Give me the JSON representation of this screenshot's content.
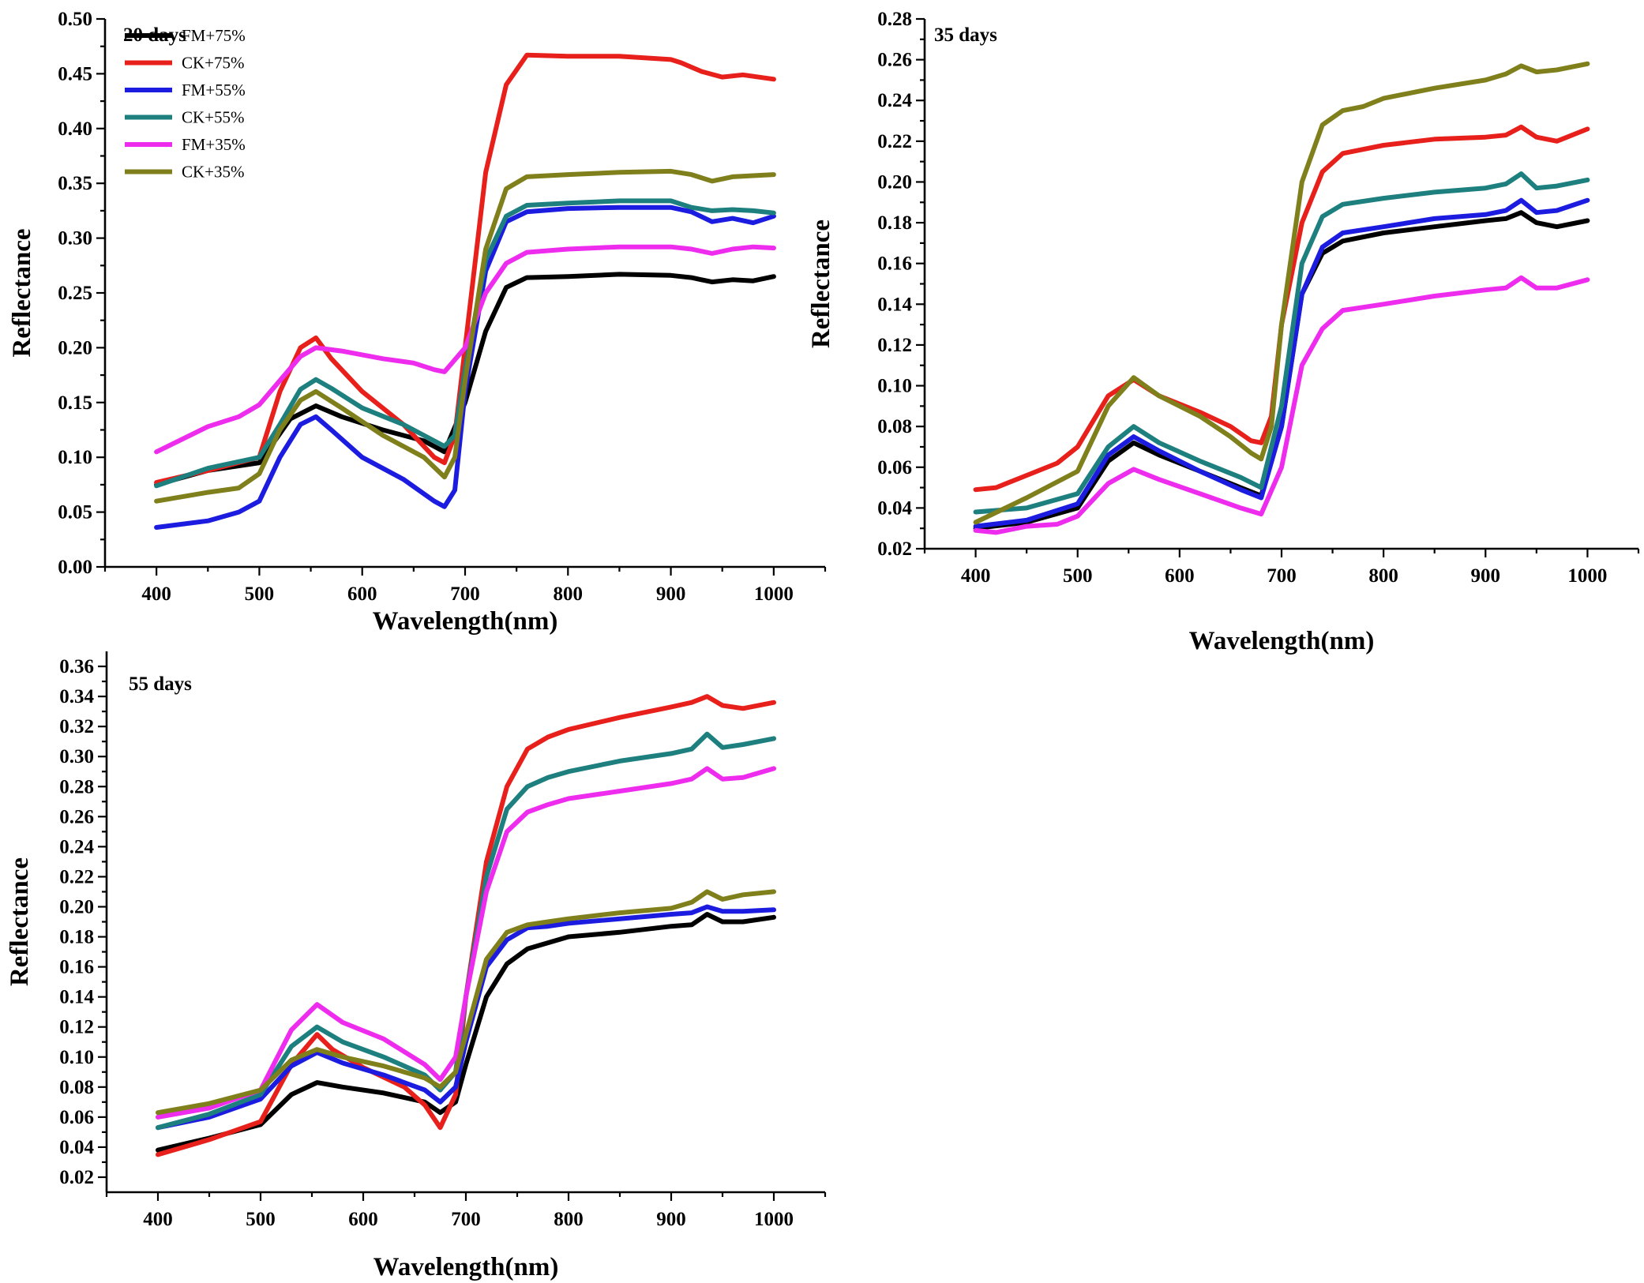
{
  "colors": {
    "FM+75%": "#000000",
    "CK+75%": "#e8201c",
    "FM+55%": "#1c1ce0",
    "CK+55%": "#1e7f7f",
    "FM+35%": "#ee2cee",
    "CK+35%": "#7f7f1c"
  },
  "chart_data": [
    {
      "type": "line",
      "title": "20 days",
      "xlabel": "Wavelength(nm)",
      "ylabel": "Reflectance",
      "xlim": [
        350,
        1050
      ],
      "ylim": [
        0.0,
        0.5
      ],
      "xticks": [
        400,
        500,
        600,
        700,
        800,
        900,
        1000
      ],
      "yticks": [
        "0.00",
        "0.05",
        "0.10",
        "0.15",
        "0.20",
        "0.25",
        "0.30",
        "0.35",
        "0.40",
        "0.45",
        "0.50"
      ],
      "legend": [
        "FM+75%",
        "CK+75%",
        "FM+55%",
        "CK+55%",
        "FM+35%",
        "CK+35%"
      ],
      "legend_position": "top-left",
      "series": [
        {
          "name": "FM+75%",
          "x": [
            400,
            450,
            500,
            530,
            555,
            580,
            620,
            660,
            680,
            700,
            720,
            740,
            760,
            800,
            850,
            900,
            920,
            940,
            960,
            980,
            1000
          ],
          "y": [
            0.075,
            0.088,
            0.095,
            0.135,
            0.147,
            0.137,
            0.125,
            0.115,
            0.105,
            0.15,
            0.215,
            0.255,
            0.264,
            0.265,
            0.267,
            0.266,
            0.264,
            0.26,
            0.262,
            0.261,
            0.265
          ]
        },
        {
          "name": "CK+75%",
          "x": [
            400,
            450,
            500,
            520,
            540,
            555,
            570,
            600,
            640,
            670,
            680,
            690,
            700,
            720,
            740,
            760,
            800,
            850,
            900,
            910,
            930,
            950,
            970,
            1000
          ],
          "y": [
            0.077,
            0.088,
            0.1,
            0.16,
            0.2,
            0.209,
            0.19,
            0.16,
            0.13,
            0.1,
            0.095,
            0.12,
            0.2,
            0.36,
            0.44,
            0.467,
            0.466,
            0.466,
            0.463,
            0.46,
            0.452,
            0.447,
            0.449,
            0.445
          ]
        },
        {
          "name": "FM+55%",
          "x": [
            400,
            450,
            480,
            500,
            520,
            540,
            555,
            570,
            600,
            640,
            670,
            680,
            690,
            700,
            720,
            740,
            760,
            800,
            850,
            900,
            920,
            940,
            960,
            980,
            1000
          ],
          "y": [
            0.036,
            0.042,
            0.05,
            0.06,
            0.1,
            0.13,
            0.137,
            0.125,
            0.1,
            0.08,
            0.06,
            0.055,
            0.07,
            0.16,
            0.27,
            0.315,
            0.324,
            0.327,
            0.328,
            0.328,
            0.324,
            0.315,
            0.318,
            0.314,
            0.32
          ]
        },
        {
          "name": "CK+55%",
          "x": [
            400,
            450,
            500,
            520,
            540,
            555,
            570,
            600,
            640,
            670,
            680,
            690,
            700,
            720,
            740,
            760,
            800,
            850,
            900,
            920,
            940,
            960,
            980,
            1000
          ],
          "y": [
            0.074,
            0.09,
            0.1,
            0.13,
            0.162,
            0.171,
            0.163,
            0.145,
            0.13,
            0.115,
            0.11,
            0.12,
            0.18,
            0.28,
            0.32,
            0.33,
            0.332,
            0.334,
            0.334,
            0.328,
            0.325,
            0.326,
            0.325,
            0.323
          ]
        },
        {
          "name": "FM+35%",
          "x": [
            400,
            450,
            480,
            500,
            520,
            540,
            555,
            580,
            620,
            650,
            670,
            680,
            700,
            720,
            740,
            760,
            800,
            850,
            900,
            920,
            940,
            960,
            980,
            1000
          ],
          "y": [
            0.105,
            0.128,
            0.137,
            0.148,
            0.17,
            0.192,
            0.2,
            0.197,
            0.19,
            0.186,
            0.18,
            0.178,
            0.2,
            0.25,
            0.277,
            0.287,
            0.29,
            0.292,
            0.292,
            0.29,
            0.286,
            0.29,
            0.292,
            0.291
          ]
        },
        {
          "name": "CK+35%",
          "x": [
            400,
            450,
            480,
            500,
            520,
            540,
            555,
            580,
            620,
            660,
            680,
            690,
            700,
            720,
            740,
            760,
            800,
            850,
            900,
            920,
            940,
            960,
            980,
            1000
          ],
          "y": [
            0.06,
            0.068,
            0.072,
            0.085,
            0.125,
            0.152,
            0.16,
            0.145,
            0.12,
            0.1,
            0.082,
            0.1,
            0.17,
            0.29,
            0.345,
            0.356,
            0.358,
            0.36,
            0.361,
            0.358,
            0.352,
            0.356,
            0.357,
            0.358
          ]
        }
      ]
    },
    {
      "type": "line",
      "title": "35 days",
      "xlabel": "Wavelength(nm)",
      "ylabel": "Reflectance",
      "xlim": [
        350,
        1050
      ],
      "ylim": [
        0.02,
        0.28
      ],
      "xticks": [
        400,
        500,
        600,
        700,
        800,
        900,
        1000
      ],
      "yticks": [
        "0.02",
        "0.04",
        "0.06",
        "0.08",
        "0.10",
        "0.12",
        "0.14",
        "0.16",
        "0.18",
        "0.20",
        "0.22",
        "0.24",
        "0.26",
        "0.28"
      ],
      "legend": [],
      "series": [
        {
          "name": "FM+75%",
          "x": [
            400,
            450,
            500,
            530,
            555,
            580,
            620,
            660,
            680,
            700,
            720,
            740,
            760,
            800,
            850,
            900,
            920,
            935,
            950,
            970,
            1000
          ],
          "y": [
            0.03,
            0.033,
            0.04,
            0.063,
            0.072,
            0.066,
            0.058,
            0.05,
            0.046,
            0.08,
            0.145,
            0.165,
            0.171,
            0.175,
            0.178,
            0.181,
            0.182,
            0.185,
            0.18,
            0.178,
            0.181
          ]
        },
        {
          "name": "CK+75%",
          "x": [
            400,
            420,
            450,
            480,
            500,
            530,
            555,
            580,
            620,
            650,
            670,
            680,
            690,
            700,
            720,
            740,
            760,
            800,
            850,
            900,
            920,
            935,
            950,
            970,
            1000
          ],
          "y": [
            0.049,
            0.05,
            0.056,
            0.062,
            0.07,
            0.095,
            0.103,
            0.095,
            0.087,
            0.08,
            0.073,
            0.072,
            0.085,
            0.13,
            0.18,
            0.205,
            0.214,
            0.218,
            0.221,
            0.222,
            0.223,
            0.227,
            0.222,
            0.22,
            0.226
          ]
        },
        {
          "name": "FM+55%",
          "x": [
            400,
            450,
            500,
            530,
            555,
            580,
            620,
            660,
            680,
            700,
            720,
            740,
            760,
            800,
            850,
            900,
            920,
            935,
            950,
            970,
            1000
          ],
          "y": [
            0.031,
            0.034,
            0.042,
            0.066,
            0.075,
            0.068,
            0.058,
            0.049,
            0.045,
            0.08,
            0.145,
            0.168,
            0.175,
            0.178,
            0.182,
            0.184,
            0.186,
            0.191,
            0.185,
            0.186,
            0.191
          ]
        },
        {
          "name": "CK+55%",
          "x": [
            400,
            450,
            500,
            530,
            555,
            580,
            620,
            660,
            680,
            700,
            720,
            740,
            760,
            800,
            850,
            900,
            920,
            935,
            950,
            970,
            1000
          ],
          "y": [
            0.038,
            0.04,
            0.047,
            0.07,
            0.08,
            0.072,
            0.063,
            0.055,
            0.05,
            0.09,
            0.16,
            0.183,
            0.189,
            0.192,
            0.195,
            0.197,
            0.199,
            0.204,
            0.197,
            0.198,
            0.201
          ]
        },
        {
          "name": "FM+35%",
          "x": [
            400,
            420,
            450,
            480,
            500,
            530,
            555,
            580,
            620,
            660,
            680,
            700,
            720,
            740,
            760,
            800,
            850,
            900,
            920,
            935,
            950,
            970,
            1000
          ],
          "y": [
            0.029,
            0.028,
            0.031,
            0.032,
            0.036,
            0.052,
            0.059,
            0.054,
            0.047,
            0.04,
            0.037,
            0.06,
            0.11,
            0.128,
            0.137,
            0.14,
            0.144,
            0.147,
            0.148,
            0.153,
            0.148,
            0.148,
            0.152
          ]
        },
        {
          "name": "CK+35%",
          "x": [
            400,
            450,
            500,
            530,
            555,
            580,
            620,
            650,
            670,
            680,
            690,
            700,
            720,
            740,
            760,
            780,
            800,
            850,
            900,
            920,
            935,
            950,
            970,
            1000
          ],
          "y": [
            0.033,
            0.045,
            0.058,
            0.09,
            0.104,
            0.095,
            0.085,
            0.075,
            0.067,
            0.064,
            0.08,
            0.13,
            0.2,
            0.228,
            0.235,
            0.237,
            0.241,
            0.246,
            0.25,
            0.253,
            0.257,
            0.254,
            0.255,
            0.258
          ]
        }
      ]
    },
    {
      "type": "line",
      "title": "55 days",
      "xlabel": "Wavelength(nm)",
      "ylabel": "Reflectance",
      "xlim": [
        350,
        1050
      ],
      "ylim": [
        0.01,
        0.37
      ],
      "xticks": [
        400,
        500,
        600,
        700,
        800,
        900,
        1000
      ],
      "yticks": [
        "0.02",
        "0.04",
        "0.06",
        "0.08",
        "0.10",
        "0.12",
        "0.14",
        "0.16",
        "0.18",
        "0.20",
        "0.22",
        "0.24",
        "0.26",
        "0.28",
        "0.30",
        "0.32",
        "0.34",
        "0.36"
      ],
      "legend": [],
      "series": [
        {
          "name": "FM+75%",
          "x": [
            400,
            450,
            500,
            530,
            555,
            580,
            620,
            660,
            675,
            690,
            700,
            720,
            740,
            760,
            780,
            800,
            850,
            900,
            920,
            935,
            950,
            970,
            1000
          ],
          "y": [
            0.038,
            0.046,
            0.055,
            0.075,
            0.083,
            0.08,
            0.076,
            0.07,
            0.063,
            0.07,
            0.095,
            0.14,
            0.162,
            0.172,
            0.176,
            0.18,
            0.183,
            0.187,
            0.188,
            0.195,
            0.19,
            0.19,
            0.193
          ]
        },
        {
          "name": "CK+75%",
          "x": [
            400,
            450,
            500,
            530,
            555,
            570,
            600,
            640,
            660,
            675,
            690,
            700,
            720,
            740,
            760,
            780,
            800,
            850,
            900,
            920,
            935,
            950,
            970,
            1000
          ],
          "y": [
            0.035,
            0.045,
            0.057,
            0.095,
            0.115,
            0.105,
            0.093,
            0.08,
            0.068,
            0.053,
            0.075,
            0.14,
            0.23,
            0.28,
            0.305,
            0.313,
            0.318,
            0.326,
            0.333,
            0.336,
            0.34,
            0.334,
            0.332,
            0.336
          ]
        },
        {
          "name": "FM+55%",
          "x": [
            400,
            450,
            500,
            530,
            555,
            580,
            620,
            660,
            675,
            690,
            700,
            720,
            740,
            760,
            780,
            800,
            850,
            900,
            920,
            935,
            950,
            970,
            1000
          ],
          "y": [
            0.053,
            0.06,
            0.072,
            0.094,
            0.103,
            0.096,
            0.088,
            0.078,
            0.07,
            0.08,
            0.11,
            0.16,
            0.178,
            0.186,
            0.187,
            0.189,
            0.192,
            0.195,
            0.196,
            0.2,
            0.197,
            0.197,
            0.198
          ]
        },
        {
          "name": "CK+55%",
          "x": [
            400,
            450,
            500,
            530,
            555,
            580,
            620,
            660,
            675,
            690,
            700,
            720,
            740,
            760,
            780,
            800,
            850,
            900,
            920,
            935,
            950,
            970,
            1000
          ],
          "y": [
            0.053,
            0.062,
            0.075,
            0.107,
            0.12,
            0.11,
            0.1,
            0.088,
            0.078,
            0.09,
            0.14,
            0.22,
            0.265,
            0.28,
            0.286,
            0.29,
            0.297,
            0.302,
            0.305,
            0.315,
            0.306,
            0.308,
            0.312
          ]
        },
        {
          "name": "FM+35%",
          "x": [
            400,
            450,
            500,
            530,
            555,
            580,
            620,
            660,
            675,
            690,
            700,
            720,
            740,
            760,
            780,
            800,
            850,
            900,
            920,
            935,
            950,
            970,
            1000
          ],
          "y": [
            0.06,
            0.066,
            0.078,
            0.118,
            0.135,
            0.123,
            0.112,
            0.095,
            0.085,
            0.1,
            0.14,
            0.21,
            0.25,
            0.263,
            0.268,
            0.272,
            0.277,
            0.282,
            0.285,
            0.292,
            0.285,
            0.286,
            0.292
          ]
        },
        {
          "name": "CK+35%",
          "x": [
            400,
            450,
            500,
            530,
            555,
            580,
            620,
            660,
            675,
            690,
            700,
            720,
            740,
            760,
            780,
            800,
            850,
            900,
            920,
            935,
            950,
            970,
            1000
          ],
          "y": [
            0.063,
            0.069,
            0.078,
            0.098,
            0.105,
            0.1,
            0.094,
            0.086,
            0.08,
            0.09,
            0.115,
            0.165,
            0.183,
            0.188,
            0.19,
            0.192,
            0.196,
            0.199,
            0.203,
            0.21,
            0.205,
            0.208,
            0.21
          ]
        }
      ]
    }
  ]
}
